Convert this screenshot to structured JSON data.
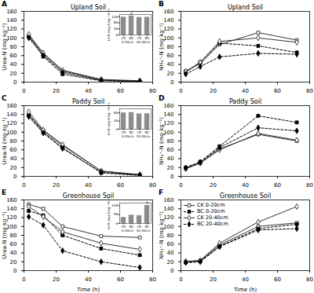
{
  "chart_data": [
    {
      "type": "line",
      "panel_label": "A",
      "title": "Upland Soil",
      "ylabel": "Urea-N (mg·kg⁻¹)",
      "x": [
        3,
        12,
        24,
        48,
        72
      ],
      "xlim": [
        0,
        80
      ],
      "xticks": [
        0,
        20,
        40,
        60,
        80
      ],
      "ylim": [
        0,
        160
      ],
      "yticks": [
        0,
        20,
        40,
        60,
        80,
        100,
        120,
        140,
        160
      ],
      "series": [
        {
          "name": "CK 0-20cm",
          "color": "#333333",
          "marker": "square-open",
          "line_style": "solid",
          "values": [
            105,
            63,
            25,
            5,
            2
          ]
        },
        {
          "name": "BC 0-20cm",
          "color": "#000000",
          "marker": "square-filled",
          "line_style": "dashed",
          "values": [
            103,
            58,
            18,
            3,
            1
          ]
        },
        {
          "name": "CK 20-40cm",
          "color": "#333333",
          "marker": "diamond-open",
          "line_style": "solid",
          "values": [
            108,
            66,
            27,
            6,
            3
          ]
        },
        {
          "name": "BC 20-40cm",
          "color": "#000000",
          "marker": "diamond-filled",
          "line_style": "dashed",
          "values": [
            100,
            60,
            22,
            4,
            2
          ]
        }
      ],
      "inset": {
        "type": "bar",
        "categories": [
          "CK",
          "BC",
          "CK",
          "BC"
        ],
        "groups": [
          "0-20cm",
          "20-40cm"
        ],
        "values": [
          118,
          126,
          116,
          117
        ],
        "color": "#8c8c8c",
        "ylabel": "UHR (mg N kg⁻¹ h⁻¹)",
        "ylim": [
          0,
          135
        ],
        "yticks": [
          0,
          40,
          80,
          120
        ],
        "annotations": [
          {
            "index": 1,
            "text": "*"
          }
        ]
      }
    },
    {
      "type": "line",
      "panel_label": "B",
      "title": "Upland Soil",
      "ylabel": "NH₄⁺-N (mg·kg⁻¹)",
      "x": [
        3,
        12,
        24,
        48,
        72
      ],
      "xlim": [
        0,
        80
      ],
      "xticks": [
        0,
        20,
        40,
        60,
        80
      ],
      "ylim": [
        0,
        160
      ],
      "yticks": [
        0,
        20,
        40,
        60,
        80,
        100,
        120,
        140,
        160
      ],
      "series": [
        {
          "name": "CK 0-20cm",
          "color": "#333333",
          "marker": "square-open",
          "line_style": "solid",
          "values": [
            25,
            42,
            85,
            112,
            95
          ]
        },
        {
          "name": "BC 0-20cm",
          "color": "#000000",
          "marker": "square-filled",
          "line_style": "dashed",
          "values": [
            22,
            45,
            88,
            82,
            67
          ]
        },
        {
          "name": "CK 20-40cm",
          "color": "#333333",
          "marker": "diamond-open",
          "line_style": "solid",
          "values": [
            24,
            45,
            92,
            100,
            90
          ]
        },
        {
          "name": "BC 20-40cm",
          "color": "#000000",
          "marker": "diamond-filled",
          "line_style": "dashed",
          "values": [
            18,
            35,
            57,
            65,
            63
          ]
        }
      ]
    },
    {
      "type": "line",
      "panel_label": "C",
      "title": "Paddy Soil",
      "ylabel": "Urea-N (mg·kg⁻¹)",
      "x": [
        3,
        12,
        24,
        48,
        72
      ],
      "xlim": [
        0,
        80
      ],
      "xticks": [
        0,
        20,
        40,
        60,
        80
      ],
      "ylim": [
        0,
        160
      ],
      "yticks": [
        0,
        20,
        40,
        60,
        80,
        100,
        120,
        140,
        160
      ],
      "series": [
        {
          "name": "CK 0-20cm",
          "color": "#333333",
          "marker": "square-open",
          "line_style": "solid",
          "values": [
            140,
            103,
            70,
            12,
            3
          ]
        },
        {
          "name": "BC 0-20cm",
          "color": "#000000",
          "marker": "square-filled",
          "line_style": "dashed",
          "values": [
            138,
            100,
            65,
            8,
            2
          ]
        },
        {
          "name": "CK 20-40cm",
          "color": "#333333",
          "marker": "diamond-open",
          "line_style": "solid",
          "values": [
            146,
            105,
            72,
            12,
            4
          ]
        },
        {
          "name": "BC 20-40cm",
          "color": "#000000",
          "marker": "diamond-filled",
          "line_style": "dashed",
          "values": [
            135,
            98,
            63,
            9,
            3
          ]
        }
      ],
      "inset": {
        "type": "bar",
        "categories": [
          "CK",
          "BC",
          "CK",
          "BC"
        ],
        "groups": [
          "0-20cm",
          "20-40cm"
        ],
        "values": [
          80,
          82,
          75,
          76
        ],
        "color": "#8c8c8c",
        "ylabel": "UHR (mg N kg⁻¹ h⁻¹)",
        "ylim": [
          0,
          100
        ],
        "yticks": [
          0,
          40,
          80
        ]
      }
    },
    {
      "type": "line",
      "panel_label": "D",
      "title": "Paddy Soil",
      "ylabel": "NH₄⁺-N (mg·kg⁻¹)",
      "x": [
        3,
        12,
        24,
        48,
        72
      ],
      "xlim": [
        0,
        80
      ],
      "xticks": [
        0,
        20,
        40,
        60,
        80
      ],
      "ylim": [
        0,
        160
      ],
      "yticks": [
        0,
        20,
        40,
        60,
        80,
        100,
        120,
        140,
        160
      ],
      "series": [
        {
          "name": "CK 0-20cm",
          "color": "#333333",
          "marker": "square-open",
          "line_style": "solid",
          "values": [
            18,
            30,
            62,
            95,
            80
          ]
        },
        {
          "name": "BC 0-20cm",
          "color": "#000000",
          "marker": "square-filled",
          "line_style": "dashed",
          "values": [
            20,
            33,
            68,
            137,
            122
          ]
        },
        {
          "name": "CK 20-40cm",
          "color": "#333333",
          "marker": "diamond-open",
          "line_style": "solid",
          "values": [
            17,
            30,
            60,
            97,
            82
          ]
        },
        {
          "name": "BC 20-40cm",
          "color": "#000000",
          "marker": "diamond-filled",
          "line_style": "dashed",
          "values": [
            19,
            32,
            65,
            110,
            103
          ]
        }
      ]
    },
    {
      "type": "line",
      "panel_label": "E",
      "title": "Greenhouse Soil",
      "ylabel": "Urea-N (mg·kg⁻¹)",
      "xlabel": "Time (h)",
      "x": [
        3,
        12,
        24,
        48,
        72
      ],
      "xlim": [
        0,
        80
      ],
      "xticks": [
        0,
        20,
        40,
        60,
        80
      ],
      "ylim": [
        0,
        160
      ],
      "yticks": [
        0,
        20,
        40,
        60,
        80,
        100,
        120,
        140,
        160
      ],
      "series": [
        {
          "name": "CK 0-20cm",
          "color": "#333333",
          "marker": "square-open",
          "line_style": "solid",
          "values": [
            150,
            140,
            100,
            78,
            75
          ]
        },
        {
          "name": "BC 0-20cm",
          "color": "#000000",
          "marker": "square-filled",
          "line_style": "dashed",
          "values": [
            135,
            125,
            80,
            50,
            35
          ]
        },
        {
          "name": "CK 20-40cm",
          "color": "#333333",
          "marker": "diamond-open",
          "line_style": "solid",
          "values": [
            145,
            122,
            88,
            62,
            48
          ]
        },
        {
          "name": "BC 20-40cm",
          "color": "#000000",
          "marker": "diamond-filled",
          "line_style": "dashed",
          "values": [
            122,
            103,
            45,
            20,
            7
          ]
        }
      ],
      "inset": {
        "type": "bar",
        "categories": [
          "CK",
          "BC",
          "CK",
          "BC"
        ],
        "groups": [
          "0-20cm",
          "20-40cm"
        ],
        "values": [
          34,
          47,
          44,
          102
        ],
        "color": "#8c8c8c",
        "ylabel": "UHR (mg N kg⁻¹ h⁻¹)",
        "ylim": [
          0,
          115
        ],
        "yticks": [
          0,
          50,
          100
        ],
        "annotations": [
          {
            "index": 3,
            "text": "*"
          }
        ]
      }
    },
    {
      "type": "line",
      "panel_label": "F",
      "title": "Greenhouse Soil",
      "ylabel": "NH₄⁺-N (mg·kg⁻¹)",
      "xlabel": "Time (h)",
      "x": [
        3,
        12,
        24,
        48,
        72
      ],
      "xlim": [
        0,
        80
      ],
      "xticks": [
        0,
        20,
        40,
        60,
        80
      ],
      "ylim": [
        0,
        160
      ],
      "yticks": [
        0,
        20,
        40,
        60,
        80,
        100,
        120,
        140,
        160
      ],
      "legend": "upper left",
      "series": [
        {
          "name": "CK 0-20cm",
          "color": "#333333",
          "marker": "square-open",
          "line_style": "solid",
          "values": [
            20,
            22,
            58,
            100,
            108
          ]
        },
        {
          "name": "BC 0-20cm",
          "color": "#000000",
          "marker": "square-filled",
          "line_style": "dashed",
          "values": [
            19,
            21,
            55,
            95,
            105
          ]
        },
        {
          "name": "CK 20-40cm",
          "color": "#333333",
          "marker": "diamond-open",
          "line_style": "solid",
          "values": [
            21,
            23,
            62,
            110,
            145
          ]
        },
        {
          "name": "BC 20-40cm",
          "color": "#000000",
          "marker": "diamond-filled",
          "line_style": "dashed",
          "values": [
            18,
            20,
            54,
            92,
            95
          ]
        }
      ]
    }
  ]
}
